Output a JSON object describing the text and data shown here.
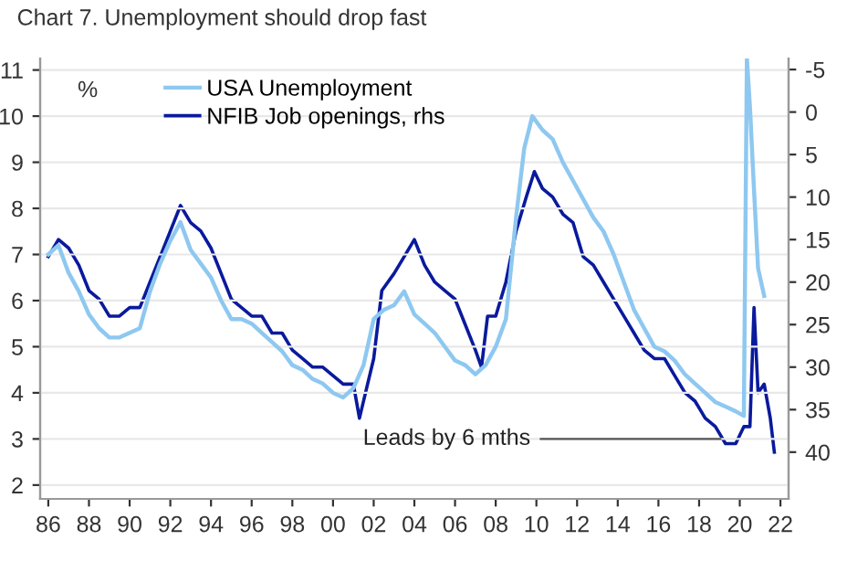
{
  "chart_data": {
    "type": "line",
    "title": "Chart 7. Unemployment should drop fast",
    "ylabel": "%",
    "series": [
      {
        "name": "USA Unemployment",
        "color": "#8ec8f0",
        "x": [
          1986.0,
          1986.5,
          1987.0,
          1987.5,
          1988.0,
          1988.5,
          1989.0,
          1989.5,
          1990.0,
          1990.5,
          1991.0,
          1991.5,
          1992.0,
          1992.5,
          1993.0,
          1993.5,
          1994.0,
          1994.5,
          1995.0,
          1995.5,
          1996.0,
          1996.5,
          1997.0,
          1997.5,
          1998.0,
          1998.5,
          1999.0,
          1999.5,
          2000.0,
          2000.5,
          2001.0,
          2001.5,
          2002.0,
          2002.5,
          2003.0,
          2003.5,
          2004.0,
          2004.5,
          2005.0,
          2005.5,
          2006.0,
          2006.5,
          2007.0,
          2007.5,
          2008.0,
          2008.5,
          2009.0,
          2009.4,
          2009.8,
          2010.3,
          2010.8,
          2011.3,
          2011.8,
          2012.3,
          2012.8,
          2013.3,
          2013.8,
          2014.3,
          2014.8,
          2015.3,
          2015.8,
          2016.3,
          2016.8,
          2017.3,
          2017.8,
          2018.3,
          2018.8,
          2019.3,
          2019.8,
          2020.2,
          2020.35,
          2020.5,
          2020.7,
          2020.9,
          2021.2
        ],
        "values": [
          7.0,
          7.2,
          6.6,
          6.2,
          5.7,
          5.4,
          5.2,
          5.2,
          5.3,
          5.4,
          6.2,
          6.8,
          7.3,
          7.7,
          7.1,
          6.8,
          6.5,
          6.0,
          5.6,
          5.6,
          5.5,
          5.3,
          5.1,
          4.9,
          4.6,
          4.5,
          4.3,
          4.2,
          4.0,
          3.9,
          4.1,
          4.6,
          5.6,
          5.8,
          5.9,
          6.2,
          5.7,
          5.5,
          5.3,
          5.0,
          4.7,
          4.6,
          4.4,
          4.6,
          5.0,
          5.6,
          7.8,
          9.3,
          10.0,
          9.7,
          9.5,
          9.0,
          8.6,
          8.2,
          7.8,
          7.5,
          7.0,
          6.4,
          5.8,
          5.4,
          5.0,
          4.9,
          4.7,
          4.4,
          4.2,
          4.0,
          3.8,
          3.7,
          3.6,
          3.5,
          11.25,
          10.2,
          8.4,
          6.7,
          6.1
        ]
      },
      {
        "name": "NFIB Job openings, rhs",
        "color": "#0a1a9c",
        "axis": "y2",
        "x": [
          1986.0,
          1986.5,
          1987.0,
          1987.5,
          1988.0,
          1988.5,
          1989.0,
          1989.5,
          1990.0,
          1990.5,
          1991.0,
          1991.5,
          1992.0,
          1992.5,
          1993.0,
          1993.5,
          1994.0,
          1994.5,
          1995.0,
          1995.5,
          1996.0,
          1996.5,
          1997.0,
          1997.5,
          1998.0,
          1998.5,
          1999.0,
          1999.5,
          2000.0,
          2000.5,
          2001.0,
          2001.3,
          2001.6,
          2002.0,
          2002.4,
          2003.0,
          2003.5,
          2004.0,
          2004.5,
          2005.0,
          2005.5,
          2006.0,
          2006.5,
          2007.0,
          2007.3,
          2007.6,
          2008.0,
          2008.5,
          2009.0,
          2009.5,
          2009.9,
          2010.3,
          2010.8,
          2011.3,
          2011.8,
          2012.3,
          2012.8,
          2013.3,
          2013.8,
          2014.3,
          2014.8,
          2015.3,
          2015.8,
          2016.3,
          2016.8,
          2017.3,
          2017.8,
          2018.3,
          2018.8,
          2019.3,
          2019.8,
          2020.2,
          2020.5,
          2020.7,
          2020.9,
          2021.2,
          2021.5,
          2021.7
        ],
        "values": [
          17,
          15,
          16,
          18,
          21,
          22,
          24,
          24,
          23,
          23,
          20,
          17,
          14,
          11,
          13,
          14,
          16,
          19,
          22,
          23,
          24,
          24,
          26,
          26,
          28,
          29,
          30,
          30,
          31,
          32,
          32,
          36,
          33,
          29,
          21,
          19,
          17,
          15,
          18,
          20,
          21,
          22,
          25,
          28,
          30,
          24,
          24,
          20,
          14,
          10,
          7,
          9,
          10,
          12,
          13,
          17,
          18,
          20,
          22,
          24,
          26,
          28,
          29,
          29,
          31,
          33,
          34,
          36,
          37,
          39,
          39,
          37,
          37,
          23,
          33,
          32,
          36,
          40
        ]
      }
    ],
    "xlim": [
      1985.6,
      2022.4
    ],
    "xticks": [
      {
        "value": 1986,
        "label": "86"
      },
      {
        "value": 1988,
        "label": "88"
      },
      {
        "value": 1990,
        "label": "90"
      },
      {
        "value": 1992,
        "label": "92"
      },
      {
        "value": 1994,
        "label": "94"
      },
      {
        "value": 1996,
        "label": "96"
      },
      {
        "value": 1998,
        "label": "98"
      },
      {
        "value": 2000,
        "label": "00"
      },
      {
        "value": 2002,
        "label": "02"
      },
      {
        "value": 2004,
        "label": "04"
      },
      {
        "value": 2006,
        "label": "06"
      },
      {
        "value": 2008,
        "label": "08"
      },
      {
        "value": 2010,
        "label": "10"
      },
      {
        "value": 2012,
        "label": "12"
      },
      {
        "value": 2014,
        "label": "14"
      },
      {
        "value": 2016,
        "label": "16"
      },
      {
        "value": 2018,
        "label": "18"
      },
      {
        "value": 2020,
        "label": "20"
      },
      {
        "value": 2022,
        "label": "22"
      }
    ],
    "ylim": [
      1.7,
      11.25
    ],
    "yticks": [
      2,
      3,
      4,
      5,
      6,
      7,
      8,
      9,
      10,
      11
    ],
    "y2lim": [
      45.5,
      -6.3
    ],
    "y2ticks": [
      -5,
      0,
      5,
      10,
      15,
      20,
      25,
      30,
      35,
      40
    ],
    "annotations": [
      {
        "text": "Leads by 6 mths",
        "x": 2019.3,
        "y": 3.0
      }
    ],
    "grid": "y",
    "legend": "top left",
    "marker": "none",
    "line_style": "solid"
  }
}
